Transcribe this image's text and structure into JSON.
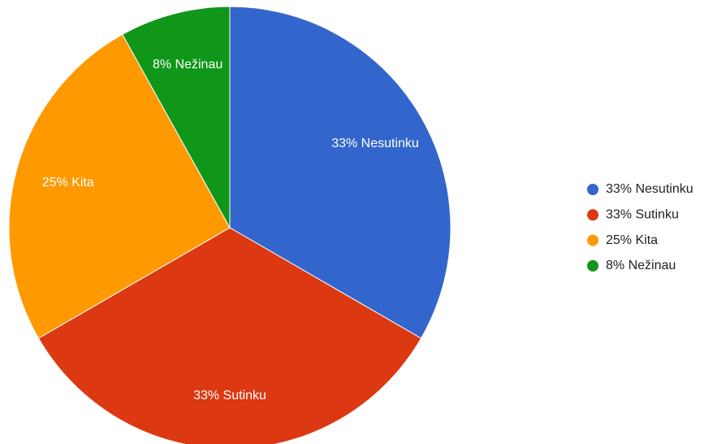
{
  "chart_data": {
    "type": "pie",
    "categories": [
      "33% Nesutinku",
      "33% Sutinku",
      "25% Kita",
      "8% Nežinau"
    ],
    "values": [
      33,
      33,
      25,
      8
    ],
    "colors": [
      "#3366cc",
      "#dc3912",
      "#ff9900",
      "#109618"
    ],
    "legend": "right"
  }
}
